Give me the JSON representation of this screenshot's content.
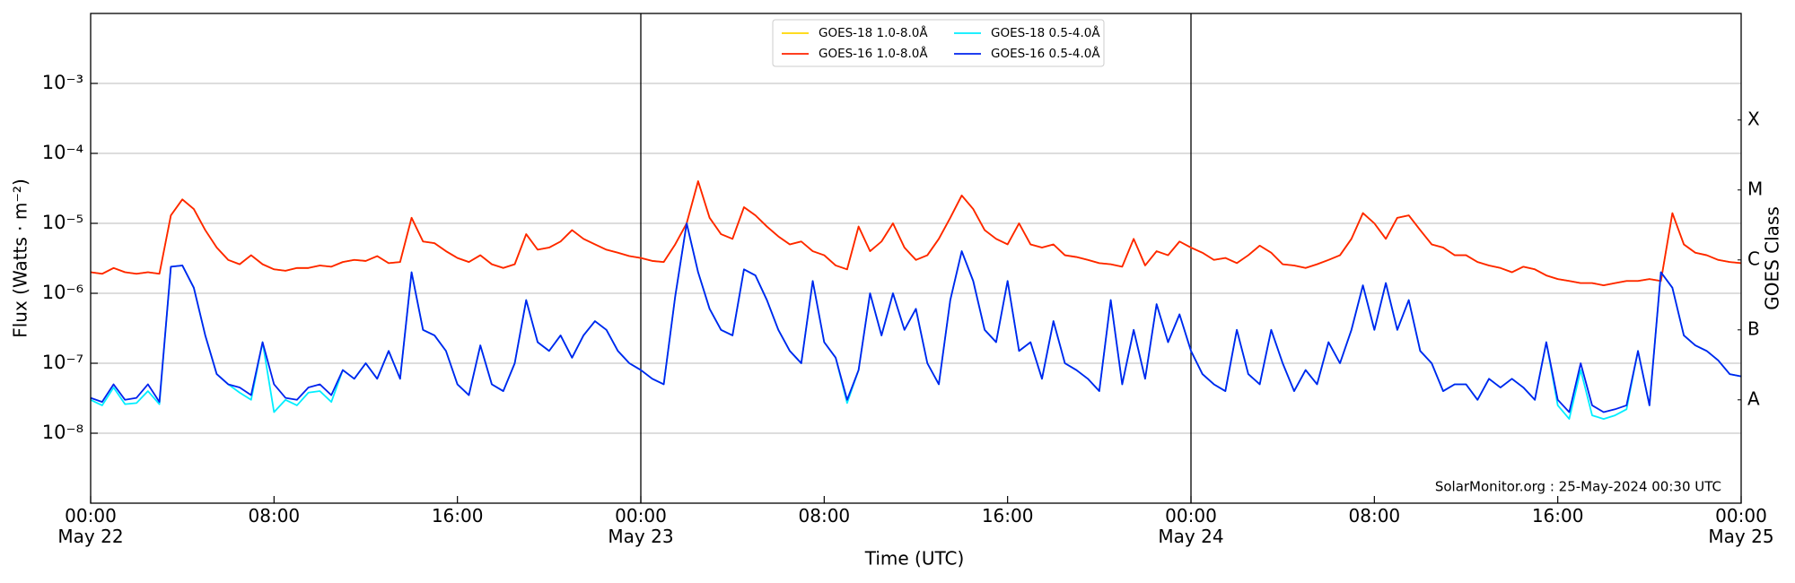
{
  "chart_data": {
    "type": "line",
    "y_label": "Flux (Watts · m⁻²)",
    "x_label": "Time (UTC)",
    "y2_label": "GOES Class",
    "annotation": "SolarMonitor.org : 25-May-2024 00:30 UTC",
    "log_y": true,
    "grid": true,
    "legend": "upper center",
    "xlim": [
      0,
      72
    ],
    "xticks": [
      {
        "value": 0,
        "label": "00:00\nMay 22"
      },
      {
        "value": 8,
        "label": "08:00"
      },
      {
        "value": 16,
        "label": "16:00"
      },
      {
        "value": 24,
        "label": "00:00\nMay 23"
      },
      {
        "value": 32,
        "label": "08:00"
      },
      {
        "value": 40,
        "label": "16:00"
      },
      {
        "value": 48,
        "label": "00:00\nMay 24"
      },
      {
        "value": 56,
        "label": "08:00"
      },
      {
        "value": 64,
        "label": "16:00"
      },
      {
        "value": 72,
        "label": "00:00\nMay 25"
      }
    ],
    "ylim": [
      1e-09,
      0.01
    ],
    "yticks": [
      {
        "value": 1e-08,
        "label": "10⁻⁸"
      },
      {
        "value": 1e-07,
        "label": "10⁻⁷"
      },
      {
        "value": 1e-06,
        "label": "10⁻⁶"
      },
      {
        "value": 1e-05,
        "label": "10⁻⁵"
      },
      {
        "value": 0.0001,
        "label": "10⁻⁴"
      },
      {
        "value": 0.001,
        "label": "10⁻³"
      }
    ],
    "y2lim": [
      1e-09,
      0.01
    ],
    "y2ticks": [
      {
        "value": 3e-08,
        "label": "A"
      },
      {
        "value": 3e-07,
        "label": "B"
      },
      {
        "value": 3e-06,
        "label": "C"
      },
      {
        "value": 3e-05,
        "label": "M"
      },
      {
        "value": 0.0003,
        "label": "X"
      }
    ],
    "x": [
      0,
      0.5,
      1,
      1.5,
      2,
      2.5,
      3,
      3.5,
      4,
      4.5,
      5,
      5.5,
      6,
      6.5,
      7,
      7.5,
      8,
      8.5,
      9,
      9.5,
      10,
      10.5,
      11,
      11.5,
      12,
      12.5,
      13,
      13.5,
      14,
      14.5,
      15,
      15.5,
      16,
      16.5,
      17,
      17.5,
      18,
      18.5,
      19,
      19.5,
      20,
      20.5,
      21,
      21.5,
      22,
      22.5,
      23,
      23.5,
      24,
      24.5,
      25,
      25.5,
      26,
      26.5,
      27,
      27.5,
      28,
      28.5,
      29,
      29.5,
      30,
      30.5,
      31,
      31.5,
      32,
      32.5,
      33,
      33.5,
      34,
      34.5,
      35,
      35.5,
      36,
      36.5,
      37,
      37.5,
      38,
      38.5,
      39,
      39.5,
      40,
      40.5,
      41,
      41.5,
      42,
      42.5,
      43,
      43.5,
      44,
      44.5,
      45,
      45.5,
      46,
      46.5,
      47,
      47.5,
      48,
      48.5,
      49,
      49.5,
      50,
      50.5,
      51,
      51.5,
      52,
      52.5,
      53,
      53.5,
      54,
      54.5,
      55,
      55.5,
      56,
      56.5,
      57,
      57.5,
      58,
      58.5,
      59,
      59.5,
      60,
      60.5,
      61,
      61.5,
      62,
      62.5,
      63,
      63.5,
      64,
      64.5,
      65,
      65.5,
      66,
      66.5,
      67,
      67.5,
      68,
      68.5,
      69,
      69.5,
      70,
      70.5,
      71,
      71.5,
      72
    ],
    "series": [
      {
        "name": "GOES-18 1.0-8.0Å",
        "color": "#ffd700",
        "values": [
          2e-06,
          1.9e-06,
          2.3e-06,
          2e-06,
          1.9e-06,
          2e-06,
          1.9e-06,
          1.3e-05,
          2.2e-05,
          1.6e-05,
          8e-06,
          4.5e-06,
          3e-06,
          2.6e-06,
          3.5e-06,
          2.6e-06,
          2.2e-06,
          2.1e-06,
          2.3e-06,
          2.3e-06,
          2.5e-06,
          2.4e-06,
          2.8e-06,
          3e-06,
          2.9e-06,
          3.4e-06,
          2.7e-06,
          2.8e-06,
          1.2e-05,
          5.5e-06,
          5.2e-06,
          4e-06,
          3.2e-06,
          2.8e-06,
          3.5e-06,
          2.6e-06,
          2.3e-06,
          2.6e-06,
          7e-06,
          4.2e-06,
          4.5e-06,
          5.5e-06,
          8e-06,
          6e-06,
          5e-06,
          4.2e-06,
          3.8e-06,
          3.4e-06,
          3.2e-06,
          2.9e-06,
          2.8e-06,
          5e-06,
          1e-05,
          4e-05,
          1.2e-05,
          7e-06,
          6e-06,
          1.7e-05,
          1.3e-05,
          9e-06,
          6.5e-06,
          5e-06,
          5.5e-06,
          4e-06,
          3.5e-06,
          2.5e-06,
          2.2e-06,
          9e-06,
          4e-06,
          5.5e-06,
          1e-05,
          4.5e-06,
          3e-06,
          3.5e-06,
          6e-06,
          1.2e-05,
          2.5e-05,
          1.6e-05,
          8e-06,
          6e-06,
          5e-06,
          1e-05,
          5e-06,
          4.5e-06,
          5e-06,
          3.5e-06,
          3.3e-06,
          3e-06,
          2.7e-06,
          2.6e-06,
          2.4e-06,
          6e-06,
          2.5e-06,
          4e-06,
          3.5e-06,
          5.5e-06,
          4.5e-06,
          3.8e-06,
          3e-06,
          3.2e-06,
          2.7e-06,
          3.5e-06,
          4.8e-06,
          3.8e-06,
          2.6e-06,
          2.5e-06,
          2.3e-06,
          2.6e-06,
          3e-06,
          3.5e-06,
          6e-06,
          1.4e-05,
          1e-05,
          6e-06,
          1.2e-05,
          1.3e-05,
          8e-06,
          5e-06,
          4.5e-06,
          3.5e-06,
          3.5e-06,
          2.8e-06,
          2.5e-06,
          2.3e-06,
          2e-06,
          2.4e-06,
          2.2e-06,
          1.8e-06,
          1.6e-06,
          1.5e-06,
          1.4e-06,
          1.4e-06,
          1.3e-06,
          1.4e-06,
          1.5e-06,
          1.5e-06,
          1.6e-06,
          1.5e-06,
          1.4e-05,
          5e-06,
          3.8e-06,
          3.5e-06,
          3e-06,
          2.8e-06,
          2.7e-06
        ]
      },
      {
        "name": "GOES-16 1.0-8.0Å",
        "color": "#ff2200",
        "values": [
          2e-06,
          1.9e-06,
          2.3e-06,
          2e-06,
          1.9e-06,
          2e-06,
          1.9e-06,
          1.3e-05,
          2.2e-05,
          1.6e-05,
          8e-06,
          4.5e-06,
          3e-06,
          2.6e-06,
          3.5e-06,
          2.6e-06,
          2.2e-06,
          2.1e-06,
          2.3e-06,
          2.3e-06,
          2.5e-06,
          2.4e-06,
          2.8e-06,
          3e-06,
          2.9e-06,
          3.4e-06,
          2.7e-06,
          2.8e-06,
          1.2e-05,
          5.5e-06,
          5.2e-06,
          4e-06,
          3.2e-06,
          2.8e-06,
          3.5e-06,
          2.6e-06,
          2.3e-06,
          2.6e-06,
          7e-06,
          4.2e-06,
          4.5e-06,
          5.5e-06,
          8e-06,
          6e-06,
          5e-06,
          4.2e-06,
          3.8e-06,
          3.4e-06,
          3.2e-06,
          2.9e-06,
          2.8e-06,
          5e-06,
          1e-05,
          4e-05,
          1.2e-05,
          7e-06,
          6e-06,
          1.7e-05,
          1.3e-05,
          9e-06,
          6.5e-06,
          5e-06,
          5.5e-06,
          4e-06,
          3.5e-06,
          2.5e-06,
          2.2e-06,
          9e-06,
          4e-06,
          5.5e-06,
          1e-05,
          4.5e-06,
          3e-06,
          3.5e-06,
          6e-06,
          1.2e-05,
          2.5e-05,
          1.6e-05,
          8e-06,
          6e-06,
          5e-06,
          1e-05,
          5e-06,
          4.5e-06,
          5e-06,
          3.5e-06,
          3.3e-06,
          3e-06,
          2.7e-06,
          2.6e-06,
          2.4e-06,
          6e-06,
          2.5e-06,
          4e-06,
          3.5e-06,
          5.5e-06,
          4.5e-06,
          3.8e-06,
          3e-06,
          3.2e-06,
          2.7e-06,
          3.5e-06,
          4.8e-06,
          3.8e-06,
          2.6e-06,
          2.5e-06,
          2.3e-06,
          2.6e-06,
          3e-06,
          3.5e-06,
          6e-06,
          1.4e-05,
          1e-05,
          6e-06,
          1.2e-05,
          1.3e-05,
          8e-06,
          5e-06,
          4.5e-06,
          3.5e-06,
          3.5e-06,
          2.8e-06,
          2.5e-06,
          2.3e-06,
          2e-06,
          2.4e-06,
          2.2e-06,
          1.8e-06,
          1.6e-06,
          1.5e-06,
          1.4e-06,
          1.4e-06,
          1.3e-06,
          1.4e-06,
          1.5e-06,
          1.5e-06,
          1.6e-06,
          1.5e-06,
          1.4e-05,
          5e-06,
          3.8e-06,
          3.5e-06,
          3e-06,
          2.8e-06,
          2.7e-06
        ]
      },
      {
        "name": "GOES-18 0.5-4.0Å",
        "color": "#00eeff",
        "values": [
          3e-08,
          2.5e-08,
          4.5e-08,
          2.6e-08,
          2.7e-08,
          4e-08,
          2.6e-08,
          2.4e-06,
          2.5e-06,
          1.2e-06,
          2.5e-07,
          7e-08,
          5e-08,
          3.8e-08,
          3e-08,
          2e-07,
          2e-08,
          3e-08,
          2.5e-08,
          3.8e-08,
          4e-08,
          2.8e-08,
          8e-08,
          6e-08,
          1e-07,
          6e-08,
          1.5e-07,
          6e-08,
          2e-06,
          3e-07,
          2.5e-07,
          1.5e-07,
          5e-08,
          3.5e-08,
          1.8e-07,
          5e-08,
          4e-08,
          1e-07,
          8e-07,
          2e-07,
          1.5e-07,
          2.5e-07,
          1.2e-07,
          2.5e-07,
          4e-07,
          3e-07,
          1.5e-07,
          1e-07,
          8e-08,
          6e-08,
          5e-08,
          9e-07,
          1e-05,
          2e-06,
          6e-07,
          3e-07,
          2.5e-07,
          2.2e-06,
          1.8e-06,
          8e-07,
          3e-07,
          1.5e-07,
          1e-07,
          1.5e-06,
          2e-07,
          1.2e-07,
          2.7e-08,
          8e-08,
          1e-06,
          2.5e-07,
          1e-06,
          3e-07,
          6e-07,
          1e-07,
          5e-08,
          8e-07,
          4e-06,
          1.5e-06,
          3e-07,
          2e-07,
          1.5e-06,
          1.5e-07,
          2e-07,
          6e-08,
          4e-07,
          1e-07,
          8e-08,
          6e-08,
          4e-08,
          8e-07,
          5e-08,
          3e-07,
          6e-08,
          7e-07,
          2e-07,
          5e-07,
          1.5e-07,
          7e-08,
          5e-08,
          4e-08,
          3e-07,
          7e-08,
          5e-08,
          3e-07,
          1e-07,
          4e-08,
          8e-08,
          5e-08,
          2e-07,
          1e-07,
          3e-07,
          1.3e-06,
          3e-07,
          1.4e-06,
          3e-07,
          8e-07,
          1.5e-07,
          1e-07,
          4e-08,
          5e-08,
          5e-08,
          3e-08,
          6e-08,
          4.5e-08,
          6e-08,
          4.5e-08,
          3e-08,
          2e-07,
          2.5e-08,
          1.6e-08,
          8e-08,
          1.8e-08,
          1.6e-08,
          1.8e-08,
          2.2e-08,
          1.5e-07,
          2.5e-08,
          2e-06,
          1.2e-06,
          2.5e-07,
          1.8e-07,
          1.5e-07,
          1.1e-07,
          7e-08,
          6.5e-08
        ]
      },
      {
        "name": "GOES-16 0.5-4.0Å",
        "color": "#0022ee",
        "values": [
          3.2e-08,
          2.8e-08,
          5e-08,
          3e-08,
          3.2e-08,
          5e-08,
          2.8e-08,
          2.4e-06,
          2.5e-06,
          1.2e-06,
          2.5e-07,
          7e-08,
          5e-08,
          4.5e-08,
          3.5e-08,
          2e-07,
          5e-08,
          3.2e-08,
          3e-08,
          4.5e-08,
          5e-08,
          3.5e-08,
          8e-08,
          6e-08,
          1e-07,
          6e-08,
          1.5e-07,
          6e-08,
          2e-06,
          3e-07,
          2.5e-07,
          1.5e-07,
          5e-08,
          3.5e-08,
          1.8e-07,
          5e-08,
          4e-08,
          1e-07,
          8e-07,
          2e-07,
          1.5e-07,
          2.5e-07,
          1.2e-07,
          2.5e-07,
          4e-07,
          3e-07,
          1.5e-07,
          1e-07,
          8e-08,
          6e-08,
          5e-08,
          9e-07,
          1e-05,
          2e-06,
          6e-07,
          3e-07,
          2.5e-07,
          2.2e-06,
          1.8e-06,
          8e-07,
          3e-07,
          1.5e-07,
          1e-07,
          1.5e-06,
          2e-07,
          1.2e-07,
          3e-08,
          8e-08,
          1e-06,
          2.5e-07,
          1e-06,
          3e-07,
          6e-07,
          1e-07,
          5e-08,
          8e-07,
          4e-06,
          1.5e-06,
          3e-07,
          2e-07,
          1.5e-06,
          1.5e-07,
          2e-07,
          6e-08,
          4e-07,
          1e-07,
          8e-08,
          6e-08,
          4e-08,
          8e-07,
          5e-08,
          3e-07,
          6e-08,
          7e-07,
          2e-07,
          5e-07,
          1.5e-07,
          7e-08,
          5e-08,
          4e-08,
          3e-07,
          7e-08,
          5e-08,
          3e-07,
          1e-07,
          4e-08,
          8e-08,
          5e-08,
          2e-07,
          1e-07,
          3e-07,
          1.3e-06,
          3e-07,
          1.4e-06,
          3e-07,
          8e-07,
          1.5e-07,
          1e-07,
          4e-08,
          5e-08,
          5e-08,
          3e-08,
          6e-08,
          4.5e-08,
          6e-08,
          4.5e-08,
          3e-08,
          2e-07,
          3e-08,
          2e-08,
          1e-07,
          2.5e-08,
          2e-08,
          2.2e-08,
          2.5e-08,
          1.5e-07,
          2.5e-08,
          2e-06,
          1.2e-06,
          2.5e-07,
          1.8e-07,
          1.5e-07,
          1.1e-07,
          7e-08,
          6.5e-08
        ]
      }
    ]
  }
}
